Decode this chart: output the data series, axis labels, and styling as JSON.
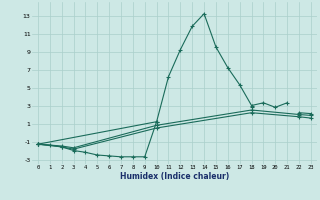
{
  "xlabel": "Humidex (Indice chaleur)",
  "xlim": [
    -0.5,
    23.5
  ],
  "ylim": [
    -3.5,
    14.5
  ],
  "yticks": [
    -3,
    -1,
    1,
    3,
    5,
    7,
    9,
    11,
    13
  ],
  "xticks": [
    0,
    1,
    2,
    3,
    4,
    5,
    6,
    7,
    8,
    9,
    10,
    11,
    12,
    13,
    14,
    15,
    16,
    17,
    18,
    19,
    20,
    21,
    22,
    23
  ],
  "bg_color": "#cde8e5",
  "grid_color": "#aacfcb",
  "line_color": "#1a6b5a",
  "line1_x": [
    0,
    1,
    2,
    3,
    4,
    5,
    6,
    7,
    8,
    9,
    10,
    11,
    12,
    13,
    14,
    15,
    16,
    17,
    18,
    19,
    20,
    21
  ],
  "line1_y": [
    -1.3,
    -1.4,
    -1.6,
    -2.0,
    -2.2,
    -2.5,
    -2.6,
    -2.7,
    -2.7,
    -2.7,
    1.2,
    6.2,
    9.2,
    11.8,
    13.2,
    9.5,
    7.2,
    5.3,
    3.0,
    3.3,
    2.8,
    3.3
  ],
  "line2_x": [
    0,
    10,
    11,
    12,
    13,
    14,
    15,
    16,
    17,
    18,
    19,
    20,
    22,
    23
  ],
  "line2_y": [
    -1.3,
    1.2,
    null,
    null,
    null,
    null,
    null,
    null,
    null,
    2.8,
    null,
    null,
    2.2,
    2.1
  ],
  "line3_x": [
    0,
    2,
    3,
    10,
    18,
    22,
    23
  ],
  "line3_y": [
    -1.3,
    -1.5,
    -1.7,
    0.8,
    2.5,
    2.0,
    1.9
  ],
  "line4_x": [
    0,
    2,
    3,
    10,
    18,
    22,
    23
  ],
  "line4_y": [
    -1.3,
    -1.6,
    -1.85,
    0.5,
    2.2,
    1.75,
    1.6
  ]
}
